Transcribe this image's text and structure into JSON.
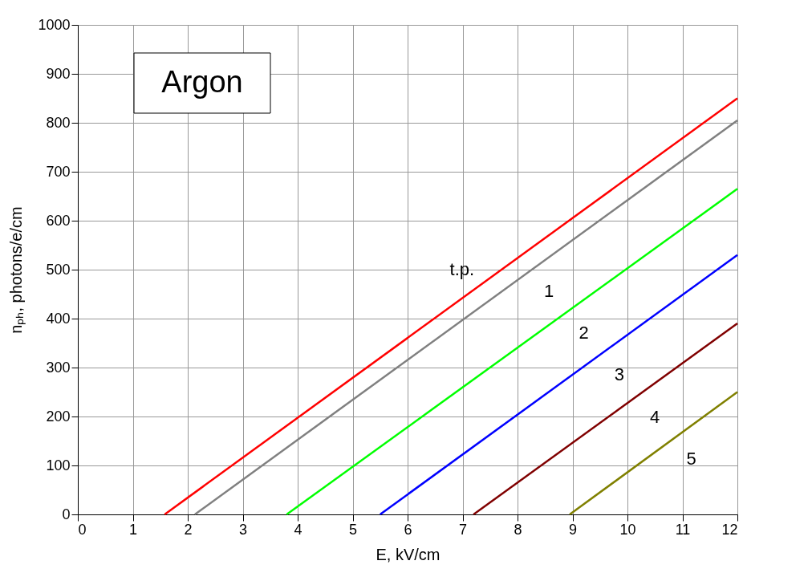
{
  "chart_data": {
    "type": "line",
    "xlabel": "E, kV/cm",
    "ylabel": "nₚₕ,  photons/e/cm",
    "xlim": [
      0,
      12
    ],
    "ylim": [
      0,
      1000
    ],
    "xticks": [
      0,
      1,
      2,
      3,
      4,
      5,
      6,
      7,
      8,
      9,
      10,
      11,
      12
    ],
    "yticks": [
      0,
      100,
      200,
      300,
      400,
      500,
      600,
      700,
      800,
      900,
      1000
    ],
    "grid": true,
    "marker": "none",
    "line_style": "solid",
    "series": [
      {
        "name": "t.p.",
        "color": "#ff0000",
        "x": [
          1.58,
          12
        ],
        "values": [
          0,
          850
        ]
      },
      {
        "name": "1",
        "color": "#808080",
        "x": [
          2.13,
          12
        ],
        "values": [
          0,
          805
        ]
      },
      {
        "name": "2",
        "color": "#00ff00",
        "x": [
          3.8,
          12
        ],
        "values": [
          0,
          665
        ]
      },
      {
        "name": "3",
        "color": "#0000ff",
        "x": [
          5.5,
          12
        ],
        "values": [
          0,
          530
        ]
      },
      {
        "name": "4",
        "color": "#800000",
        "x": [
          7.2,
          12
        ],
        "values": [
          0,
          390
        ]
      },
      {
        "name": "5",
        "color": "#808000",
        "x": [
          8.95,
          12
        ],
        "values": [
          0,
          250
        ]
      }
    ],
    "annotations": [
      "Argon"
    ]
  }
}
